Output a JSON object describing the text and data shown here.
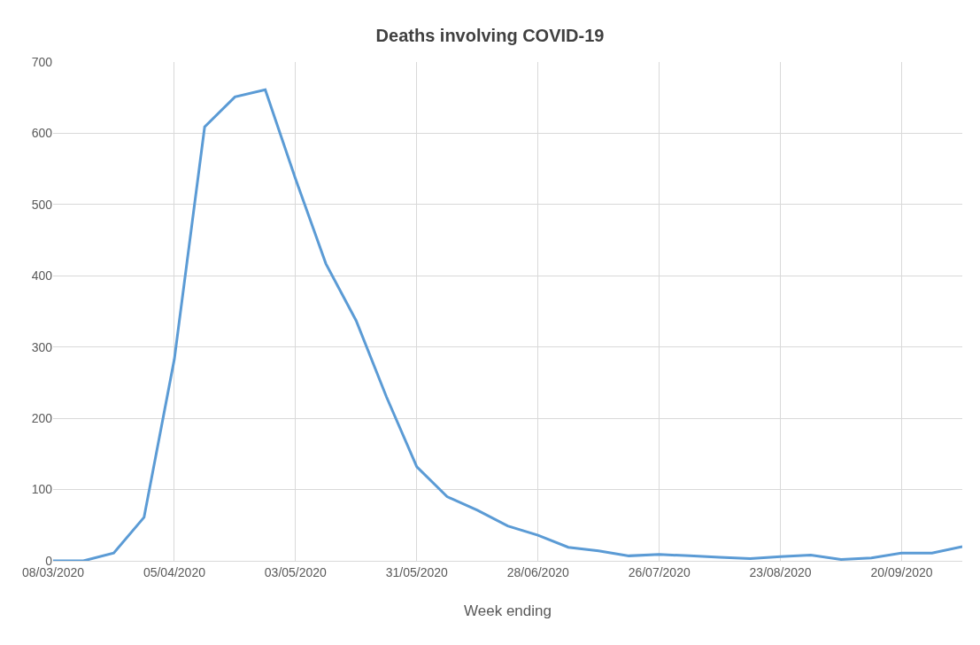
{
  "chart_data": {
    "type": "line",
    "title": "Deaths involving COVID-19",
    "xlabel": "Week ending",
    "x": [
      "2020-03-08",
      "2020-03-15",
      "2020-03-22",
      "2020-03-29",
      "2020-04-05",
      "2020-04-12",
      "2020-04-19",
      "2020-04-26",
      "2020-05-03",
      "2020-05-10",
      "2020-05-17",
      "2020-05-24",
      "2020-05-31",
      "2020-06-07",
      "2020-06-14",
      "2020-06-21",
      "2020-06-28",
      "2020-07-05",
      "2020-07-12",
      "2020-07-19",
      "2020-07-26",
      "2020-08-02",
      "2020-08-09",
      "2020-08-16",
      "2020-08-23",
      "2020-08-30",
      "2020-09-06",
      "2020-09-13",
      "2020-09-20",
      "2020-09-27",
      "2020-10-04"
    ],
    "series": [
      {
        "color": "#5b9bd5",
        "values": [
          0,
          0,
          11,
          61,
          283,
          609,
          651,
          661,
          536,
          417,
          337,
          230,
          132,
          90,
          71,
          49,
          36,
          19,
          14,
          7,
          9,
          7,
          5,
          3,
          6,
          8,
          2,
          4,
          11,
          11,
          20
        ]
      }
    ],
    "xlim": [
      "2020-03-08",
      "2020-10-04"
    ],
    "xticks": [
      {
        "value": "2020-03-08",
        "label": "08/03/2020"
      },
      {
        "value": "2020-04-05",
        "label": "05/04/2020"
      },
      {
        "value": "2020-05-03",
        "label": "03/05/2020"
      },
      {
        "value": "2020-05-31",
        "label": "31/05/2020"
      },
      {
        "value": "2020-06-28",
        "label": "28/06/2020"
      },
      {
        "value": "2020-07-26",
        "label": "26/07/2020"
      },
      {
        "value": "2020-08-23",
        "label": "23/08/2020"
      },
      {
        "value": "2020-09-20",
        "label": "20/09/2020"
      }
    ],
    "ylim": [
      0,
      700
    ],
    "yticks": [
      0,
      100,
      200,
      300,
      400,
      500,
      600,
      700
    ],
    "grid": true,
    "marker": "none",
    "line_style": "solid"
  }
}
